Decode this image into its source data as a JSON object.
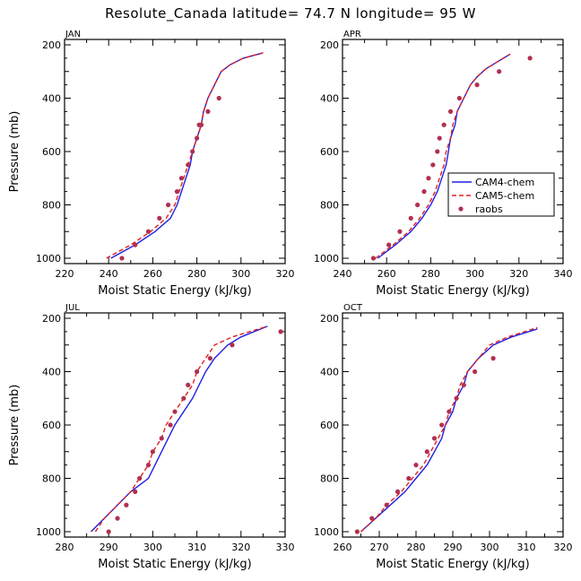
{
  "title": "Resolute_Canada   latitude= 74.7 N longitude= 95 W",
  "legend": {
    "entries": [
      {
        "name": "CAM4-chem",
        "color": "#2020e0",
        "style": "solid"
      },
      {
        "name": "CAM5-chem",
        "color": "#e02020",
        "style": "dashed"
      },
      {
        "name": "raobs",
        "color": "#b03050",
        "style": "marker"
      }
    ]
  },
  "chart_data": [
    {
      "type": "line",
      "panel": "JAN",
      "xlabel": "Moist Static Energy (kJ/kg)",
      "ylabel": "Pressure (mb)",
      "xlim": [
        220,
        320
      ],
      "ylim": [
        1000,
        200
      ],
      "xticks": [
        220,
        240,
        260,
        280,
        300,
        320
      ],
      "yticks": [
        200,
        400,
        600,
        800,
        1000
      ],
      "series": [
        {
          "name": "CAM4-chem",
          "points": [
            [
              241,
              1000
            ],
            [
              252,
              950
            ],
            [
              261,
              900
            ],
            [
              268,
              850
            ],
            [
              271,
              800
            ],
            [
              273,
              750
            ],
            [
              275,
              700
            ],
            [
              277,
              650
            ],
            [
              278,
              600
            ],
            [
              280,
              550
            ],
            [
              282,
              500
            ],
            [
              283,
              450
            ],
            [
              285,
              400
            ],
            [
              288,
              350
            ],
            [
              291,
              300
            ],
            [
              295,
              275
            ],
            [
              301,
              250
            ],
            [
              310,
              230
            ]
          ]
        },
        {
          "name": "CAM5-chem",
          "points": [
            [
              239,
              1000
            ],
            [
              250,
              950
            ],
            [
              259,
              900
            ],
            [
              266,
              850
            ],
            [
              270,
              800
            ],
            [
              272,
              750
            ],
            [
              274,
              700
            ],
            [
              276,
              650
            ],
            [
              278,
              600
            ],
            [
              280,
              550
            ],
            [
              282,
              500
            ],
            [
              283,
              450
            ],
            [
              285,
              400
            ],
            [
              288,
              350
            ],
            [
              291,
              300
            ],
            [
              295,
              275
            ],
            [
              301,
              250
            ],
            [
              310,
              230
            ]
          ]
        },
        {
          "name": "raobs",
          "points": [
            [
              246,
              1000
            ],
            [
              252,
              950
            ],
            [
              258,
              900
            ],
            [
              263,
              850
            ],
            [
              267,
              800
            ],
            [
              271,
              750
            ],
            [
              273,
              700
            ],
            [
              276,
              650
            ],
            [
              278,
              600
            ],
            [
              280,
              550
            ],
            [
              281,
              500
            ],
            [
              282,
              500
            ],
            [
              285,
              450
            ],
            [
              290,
              400
            ]
          ]
        }
      ]
    },
    {
      "type": "line",
      "panel": "APR",
      "xlabel": "Moist Static Energy (kJ/kg)",
      "ylabel": "",
      "xlim": [
        240,
        340
      ],
      "ylim": [
        1000,
        200
      ],
      "xticks": [
        240,
        260,
        280,
        300,
        320,
        340
      ],
      "yticks": [
        200,
        400,
        600,
        800,
        1000
      ],
      "series": [
        {
          "name": "CAM4-chem",
          "points": [
            [
              256,
              1000
            ],
            [
              264,
              950
            ],
            [
              271,
              900
            ],
            [
              276,
              850
            ],
            [
              280,
              800
            ],
            [
              283,
              750
            ],
            [
              285,
              700
            ],
            [
              287,
              650
            ],
            [
              288,
              600
            ],
            [
              289,
              550
            ],
            [
              291,
              500
            ],
            [
              292,
              450
            ],
            [
              295,
              400
            ],
            [
              298,
              350
            ],
            [
              301,
              320
            ],
            [
              305,
              290
            ],
            [
              309,
              270
            ],
            [
              316,
              235
            ]
          ]
        },
        {
          "name": "CAM5-chem",
          "points": [
            [
              255,
              1000
            ],
            [
              263,
              950
            ],
            [
              270,
              900
            ],
            [
              275,
              850
            ],
            [
              279,
              800
            ],
            [
              282,
              750
            ],
            [
              284,
              700
            ],
            [
              286,
              650
            ],
            [
              287,
              600
            ],
            [
              289,
              550
            ],
            [
              290,
              500
            ],
            [
              292,
              450
            ],
            [
              295,
              400
            ],
            [
              298,
              350
            ],
            [
              301,
              320
            ],
            [
              305,
              290
            ],
            [
              309,
              270
            ],
            [
              316,
              235
            ]
          ]
        },
        {
          "name": "raobs",
          "points": [
            [
              254,
              1000
            ],
            [
              261,
              950
            ],
            [
              266,
              900
            ],
            [
              271,
              850
            ],
            [
              274,
              800
            ],
            [
              277,
              750
            ],
            [
              279,
              700
            ],
            [
              281,
              650
            ],
            [
              283,
              600
            ],
            [
              284,
              550
            ],
            [
              286,
              500
            ],
            [
              289,
              450
            ],
            [
              293,
              400
            ],
            [
              301,
              350
            ],
            [
              311,
              300
            ],
            [
              325,
              250
            ]
          ]
        }
      ]
    },
    {
      "type": "line",
      "panel": "JUL",
      "xlabel": "Moist Static Energy (kJ/kg)",
      "ylabel": "Pressure (mb)",
      "xlim": [
        280,
        330
      ],
      "ylim": [
        1000,
        200
      ],
      "xticks": [
        280,
        290,
        300,
        310,
        320,
        330
      ],
      "yticks": [
        200,
        400,
        600,
        800,
        1000
      ],
      "series": [
        {
          "name": "CAM4-chem",
          "points": [
            [
              286,
              1000
            ],
            [
              289,
              950
            ],
            [
              292,
              900
            ],
            [
              295,
              850
            ],
            [
              299,
              800
            ],
            [
              302,
              700
            ],
            [
              305,
              600
            ],
            [
              309,
              500
            ],
            [
              312,
              400
            ],
            [
              314,
              350
            ],
            [
              317,
              300
            ],
            [
              320,
              270
            ],
            [
              326,
              230
            ]
          ]
        },
        {
          "name": "CAM5-chem",
          "points": [
            [
              287,
              1000
            ],
            [
              289,
              950
            ],
            [
              292,
              900
            ],
            [
              295,
              850
            ],
            [
              297,
              800
            ],
            [
              299,
              750
            ],
            [
              300,
              700
            ],
            [
              302,
              650
            ],
            [
              303,
              600
            ],
            [
              305,
              550
            ],
            [
              307,
              500
            ],
            [
              309,
              450
            ],
            [
              310,
              400
            ],
            [
              312,
              350
            ],
            [
              314,
              300
            ],
            [
              318,
              270
            ],
            [
              326,
              230
            ]
          ]
        },
        {
          "name": "raobs",
          "points": [
            [
              290,
              1000
            ],
            [
              292,
              950
            ],
            [
              294,
              900
            ],
            [
              296,
              850
            ],
            [
              297,
              800
            ],
            [
              299,
              750
            ],
            [
              300,
              700
            ],
            [
              302,
              650
            ],
            [
              304,
              600
            ],
            [
              305,
              550
            ],
            [
              307,
              500
            ],
            [
              308,
              450
            ],
            [
              310,
              400
            ],
            [
              313,
              350
            ],
            [
              318,
              300
            ],
            [
              329,
              250
            ]
          ]
        }
      ]
    },
    {
      "type": "line",
      "panel": "OCT",
      "xlabel": "Moist Static Energy (kJ/kg)",
      "ylabel": "",
      "xlim": [
        260,
        320
      ],
      "ylim": [
        1000,
        200
      ],
      "xticks": [
        260,
        270,
        280,
        290,
        300,
        310,
        320
      ],
      "yticks": [
        200,
        400,
        600,
        800,
        1000
      ],
      "series": [
        {
          "name": "CAM4-chem",
          "points": [
            [
              265,
              1000
            ],
            [
              269,
              950
            ],
            [
              273,
              900
            ],
            [
              277,
              850
            ],
            [
              280,
              800
            ],
            [
              283,
              750
            ],
            [
              285,
              700
            ],
            [
              287,
              650
            ],
            [
              288,
              600
            ],
            [
              290,
              550
            ],
            [
              291,
              500
            ],
            [
              293,
              450
            ],
            [
              294,
              400
            ],
            [
              297,
              350
            ],
            [
              301,
              300
            ],
            [
              306,
              270
            ],
            [
              313,
              240
            ]
          ]
        },
        {
          "name": "CAM5-chem",
          "points": [
            [
              265,
              1000
            ],
            [
              269,
              950
            ],
            [
              272,
              900
            ],
            [
              276,
              850
            ],
            [
              279,
              800
            ],
            [
              282,
              750
            ],
            [
              284,
              700
            ],
            [
              286,
              650
            ],
            [
              288,
              600
            ],
            [
              289,
              550
            ],
            [
              291,
              500
            ],
            [
              292,
              450
            ],
            [
              294,
              400
            ],
            [
              297,
              350
            ],
            [
              300,
              300
            ],
            [
              305,
              270
            ],
            [
              313,
              235
            ]
          ]
        },
        {
          "name": "raobs",
          "points": [
            [
              264,
              1000
            ],
            [
              268,
              950
            ],
            [
              272,
              900
            ],
            [
              275,
              850
            ],
            [
              278,
              800
            ],
            [
              280,
              750
            ],
            [
              283,
              700
            ],
            [
              285,
              650
            ],
            [
              287,
              600
            ],
            [
              289,
              550
            ],
            [
              291,
              500
            ],
            [
              293,
              450
            ],
            [
              296,
              400
            ],
            [
              301,
              350
            ]
          ]
        }
      ]
    }
  ]
}
